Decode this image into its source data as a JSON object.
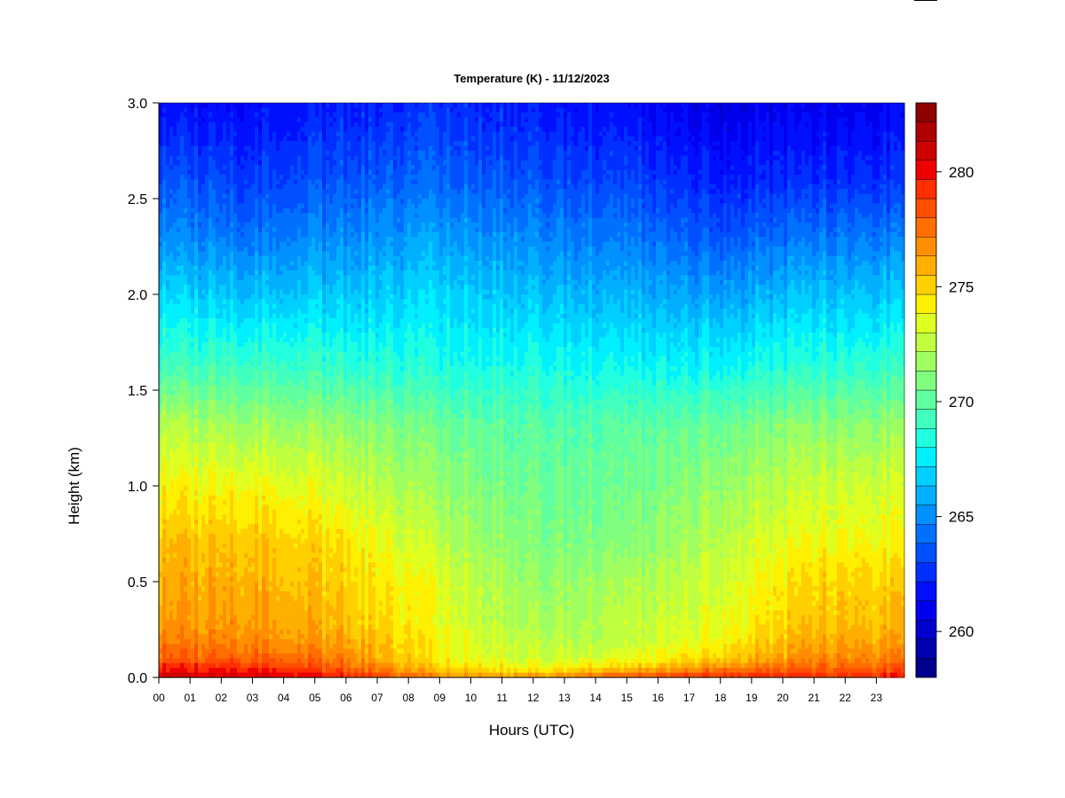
{
  "chart_data": {
    "type": "heatmap",
    "title": "Temperature (K) - 11/12/2023",
    "xlabel": "Hours (UTC)",
    "ylabel": "Height (km)",
    "x_ticks": [
      "00",
      "01",
      "02",
      "03",
      "04",
      "05",
      "06",
      "07",
      "08",
      "09",
      "10",
      "11",
      "12",
      "13",
      "14",
      "15",
      "16",
      "17",
      "18",
      "19",
      "20",
      "21",
      "22",
      "23"
    ],
    "xlim": [
      0,
      23.9
    ],
    "y_ticks": [
      "0.0",
      "0.5",
      "1.0",
      "1.5",
      "2.0",
      "2.5",
      "3.0"
    ],
    "ylim": [
      0,
      3.0
    ],
    "colorbar": {
      "min": 258,
      "max": 283,
      "step": 1,
      "tick_labels": [
        "260",
        "265",
        "270",
        "275",
        "280"
      ],
      "tick_values": [
        260,
        265,
        270,
        275,
        280
      ],
      "colors": [
        "#00008f",
        "#0000af",
        "#0000cf",
        "#0000ef",
        "#0010ff",
        "#0030ff",
        "#0050ff",
        "#0070ff",
        "#0090ff",
        "#00b0ff",
        "#00d0ff",
        "#00f0ff",
        "#20ffdf",
        "#40ffbf",
        "#60ff9f",
        "#80ff7f",
        "#9fff60",
        "#bfff40",
        "#dfff20",
        "#ffef00",
        "#ffcf00",
        "#ffaf00",
        "#ff8f00",
        "#ff6f00",
        "#ff4f00",
        "#ff2f00",
        "#ef0000",
        "#cf0000",
        "#af0000",
        "#8f0000"
      ]
    },
    "profile_heights_km": [
      0.0,
      0.05,
      0.1,
      0.2,
      0.3,
      0.5,
      0.7,
      1.0,
      1.3,
      1.6,
      2.0,
      2.3,
      2.6,
      3.0
    ],
    "profile_times_h": [
      0,
      3,
      6,
      9,
      12,
      15,
      18,
      21,
      24
    ],
    "profile_values_K": [
      [
        281.0,
        279.5,
        278.0,
        277.0,
        276.5,
        276.0,
        275.5,
        274.0,
        272.5,
        269.5,
        267.0,
        265.0,
        263.5,
        261.5
      ],
      [
        281.0,
        279.5,
        278.0,
        277.0,
        276.5,
        276.0,
        275.5,
        274.0,
        272.0,
        269.5,
        266.5,
        264.5,
        263.0,
        261.5
      ],
      [
        279.5,
        278.0,
        277.0,
        276.0,
        275.5,
        275.0,
        274.5,
        273.0,
        271.5,
        269.0,
        266.5,
        265.0,
        263.5,
        262.0
      ],
      [
        277.0,
        275.0,
        274.0,
        274.0,
        273.5,
        273.5,
        272.5,
        271.5,
        270.5,
        268.5,
        267.0,
        265.5,
        264.0,
        262.5
      ],
      [
        276.5,
        274.0,
        273.0,
        272.5,
        272.0,
        271.5,
        271.0,
        270.5,
        270.0,
        268.5,
        266.5,
        265.0,
        263.5,
        262.0
      ],
      [
        278.5,
        275.0,
        273.5,
        272.5,
        272.5,
        272.0,
        271.0,
        270.5,
        270.0,
        268.0,
        266.0,
        264.5,
        263.0,
        261.5
      ],
      [
        279.5,
        277.0,
        275.0,
        274.0,
        273.5,
        273.0,
        272.5,
        271.5,
        270.5,
        268.0,
        265.5,
        263.5,
        262.0,
        260.5
      ],
      [
        279.5,
        278.0,
        277.0,
        276.0,
        275.5,
        275.0,
        274.0,
        273.0,
        271.5,
        269.0,
        266.5,
        264.5,
        262.5,
        261.0
      ],
      [
        279.5,
        278.0,
        277.0,
        276.0,
        275.5,
        275.0,
        274.0,
        273.0,
        271.5,
        269.0,
        266.5,
        264.5,
        262.5,
        261.0
      ]
    ]
  }
}
